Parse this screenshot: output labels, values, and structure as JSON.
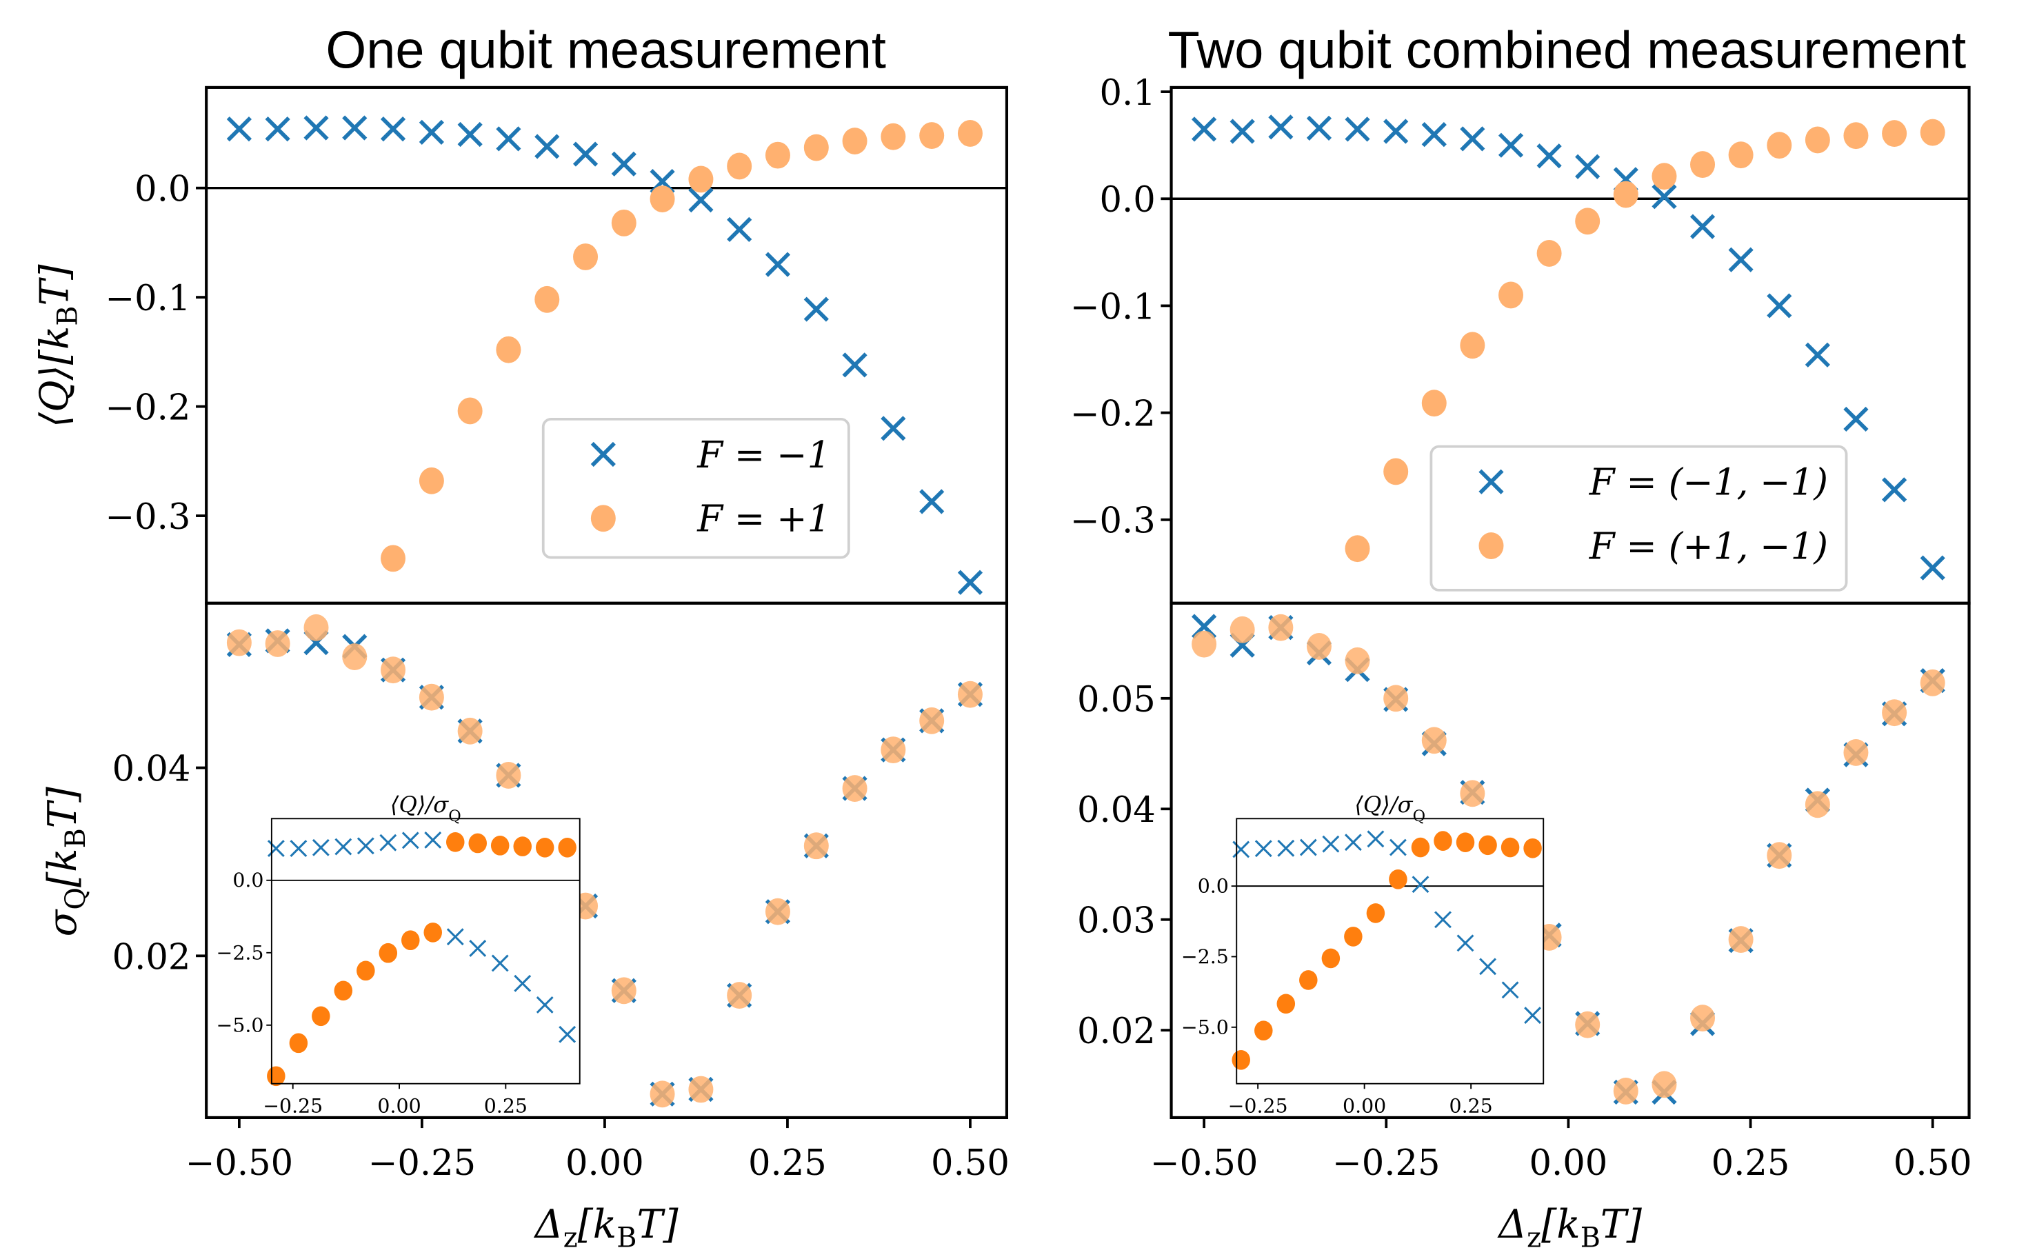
{
  "colors": {
    "blue": "#1f77b4",
    "orange_light": "#ffb170",
    "orange": "#ff7f0e",
    "legend_border": "#d0d0d0"
  },
  "chart_data": [
    {
      "type": "scatter",
      "title": "One qubit measurement",
      "x": [
        -0.5,
        -0.4474,
        -0.3947,
        -0.3421,
        -0.2895,
        -0.2368,
        -0.1842,
        -0.1316,
        -0.0789,
        -0.0263,
        0.0263,
        0.0789,
        0.1316,
        0.1842,
        0.2368,
        0.2895,
        0.3421,
        0.3947,
        0.4474,
        0.5
      ],
      "xlabel": "Δ_{z}[k_{B}T]",
      "xlim": [
        -0.545,
        0.55
      ],
      "xticks": [
        -0.5,
        -0.25,
        0,
        0.25,
        0.5
      ],
      "xticklabels": [
        "−0.50",
        "−0.25",
        "0.00",
        "0.25",
        "0.50"
      ],
      "legend": {
        "placement": "lower-right of top panel",
        "entries": [
          "F = −1",
          "F = +1"
        ]
      },
      "mean_panel": {
        "ylabel": "⟨Q⟩[k_{B}T]",
        "ylim": [
          -0.38,
          0.092
        ],
        "yticks": [
          0,
          -0.1,
          -0.2,
          -0.3
        ],
        "yticklabels": [
          "0.0",
          "−0.1",
          "−0.2",
          "−0.3"
        ],
        "hline": 0,
        "series": [
          {
            "name": "F = −1",
            "marker": "x",
            "y": [
              0.054,
              0.054,
              0.055,
              0.055,
              0.054,
              0.051,
              0.049,
              0.045,
              0.038,
              0.031,
              0.022,
              0.006,
              -0.011,
              -0.038,
              -0.07,
              -0.111,
              -0.162,
              -0.22,
              -0.287,
              -0.361
            ]
          },
          {
            "name": "F = +1",
            "marker": "o",
            "y": [
              null,
              null,
              null,
              null,
              -0.339,
              -0.268,
              -0.204,
              -0.148,
              -0.102,
              -0.063,
              -0.032,
              -0.01,
              0.008,
              0.02,
              0.03,
              0.037,
              0.043,
              0.047,
              0.048,
              0.05
            ]
          }
        ]
      },
      "std_panel": {
        "ylabel": "σ_{Q}[k_{B}T]",
        "ylim": [
          0.0028,
          0.0575
        ],
        "yticks": [
          0.02,
          0.04
        ],
        "yticklabels": [
          "0.02",
          "0.04"
        ],
        "series": [
          {
            "name": "F = −1",
            "marker": "x",
            "y": [
              0.0531,
              0.0535,
              0.0533,
              0.0529,
              0.0504,
              0.0475,
              0.0439,
              0.0392,
              null,
              0.0253,
              0.0163,
              0.0053,
              0.0058,
              0.0158,
              0.0247,
              0.0317,
              0.0378,
              0.0419,
              0.045,
              0.0478
            ]
          },
          {
            "name": "F = +1",
            "marker": "o",
            "y": [
              0.0533,
              0.0532,
              0.0549,
              0.0518,
              0.0504,
              0.0475,
              0.0439,
              0.0392,
              null,
              0.0253,
              0.0163,
              0.0053,
              0.0058,
              0.0158,
              0.0247,
              0.0317,
              0.0378,
              0.0419,
              0.045,
              0.0478
            ]
          }
        ]
      },
      "inset": {
        "title": "⟨Q⟩/σ_{Q}",
        "x": [
          -0.2895,
          -0.2368,
          -0.1842,
          -0.1316,
          -0.0789,
          -0.0263,
          0.0263,
          0.0789,
          0.1316,
          0.1842,
          0.2368,
          0.2895,
          0.3421,
          0.3947
        ],
        "xlim": [
          -0.3,
          0.424
        ],
        "ylim": [
          -7.02,
          2.13
        ],
        "xticks": [
          -0.25,
          0,
          0.25
        ],
        "xticklabels": [
          "−0.25",
          "0.00",
          "0.25"
        ],
        "yticks": [
          0,
          -2.5,
          -5
        ],
        "yticklabels": [
          "0.0",
          "−2.5",
          "−5.0"
        ],
        "hline": 0,
        "series": [
          {
            "name": "F = −1",
            "marker": "x",
            "y": [
              1.1,
              1.1,
              1.13,
              1.16,
              1.19,
              1.3,
              1.38,
              1.39,
              -1.95,
              -2.35,
              -2.86,
              -3.56,
              -4.3,
              -5.32
            ]
          },
          {
            "name": "F = +1",
            "marker": "o",
            "y": [
              -6.76,
              -5.62,
              -4.69,
              -3.81,
              -3.12,
              -2.51,
              -2.07,
              -1.8,
              1.32,
              1.28,
              1.2,
              1.17,
              1.13,
              1.13
            ]
          }
        ]
      }
    },
    {
      "type": "scatter",
      "title": "Two qubit combined measurement",
      "x": [
        -0.5,
        -0.4474,
        -0.3947,
        -0.3421,
        -0.2895,
        -0.2368,
        -0.1842,
        -0.1316,
        -0.0789,
        -0.0263,
        0.0263,
        0.0789,
        0.1316,
        0.1842,
        0.2368,
        0.2895,
        0.3421,
        0.3947,
        0.4474,
        0.5
      ],
      "xlabel": "Δ_{z}[k_{B}T]",
      "xlim": [
        -0.545,
        0.55
      ],
      "xticks": [
        -0.5,
        -0.25,
        0,
        0.25,
        0.5
      ],
      "xticklabels": [
        "−0.50",
        "−0.25",
        "0.00",
        "0.25",
        "0.50"
      ],
      "legend": {
        "placement": "lower-right of top panel",
        "entries": [
          "F = (−1, −1)",
          "F = (+1, −1)"
        ]
      },
      "mean_panel": {
        "ylabel": "",
        "ylim": [
          -0.378,
          0.104
        ],
        "yticks": [
          0.1,
          0,
          -0.1,
          -0.2,
          -0.3
        ],
        "yticklabels": [
          "0.1",
          "0.0",
          "−0.1",
          "−0.2",
          "−0.3"
        ],
        "hline": 0,
        "series": [
          {
            "name": "F = (−1, −1)",
            "marker": "x",
            "y": [
              0.065,
              0.063,
              0.067,
              0.066,
              0.065,
              0.063,
              0.06,
              0.056,
              0.05,
              0.04,
              0.03,
              0.018,
              0.002,
              -0.026,
              -0.057,
              -0.1,
              -0.146,
              -0.206,
              -0.272,
              -0.345
            ]
          },
          {
            "name": "F = (+1, −1)",
            "marker": "o",
            "y": [
              null,
              null,
              null,
              null,
              -0.327,
              -0.255,
              -0.191,
              -0.137,
              -0.09,
              -0.051,
              -0.021,
              0.004,
              0.021,
              0.032,
              0.041,
              0.05,
              0.055,
              0.059,
              0.061,
              0.062
            ]
          }
        ]
      },
      "std_panel": {
        "ylabel": "",
        "ylim": [
          0.0121,
          0.0586
        ],
        "yticks": [
          0.02,
          0.03,
          0.04,
          0.05
        ],
        "yticklabels": [
          "0.02",
          "0.03",
          "0.04",
          "0.05"
        ],
        "series": [
          {
            "name": "F = (−1, −1)",
            "marker": "x",
            "y": [
              0.0565,
              0.0548,
              0.0564,
              0.0541,
              0.0526,
              0.0499,
              0.0459,
              0.0415,
              null,
              0.0286,
              0.0206,
              0.0144,
              0.0144,
              0.0206,
              0.0281,
              0.0358,
              0.0408,
              0.0449,
              0.0486,
              0.0516
            ]
          },
          {
            "name": "F = (+1, −1)",
            "marker": "o",
            "y": [
              0.0549,
              0.0562,
              0.0564,
              0.0547,
              0.0534,
              0.05,
              0.0462,
              0.0414,
              null,
              0.0284,
              0.0205,
              0.0145,
              0.0151,
              0.0211,
              0.0282,
              0.0358,
              0.0404,
              0.0451,
              0.0487,
              0.0514
            ]
          }
        ]
      },
      "inset": {
        "title": "⟨Q⟩/σ_{Q}",
        "x": [
          -0.2895,
          -0.2368,
          -0.1842,
          -0.1316,
          -0.0789,
          -0.0263,
          0.0263,
          0.0789,
          0.1316,
          0.1842,
          0.2368,
          0.2895,
          0.3421,
          0.3947
        ],
        "xlim": [
          -0.3,
          0.42
        ],
        "ylim": [
          -7.0,
          2.39
        ],
        "xticks": [
          -0.25,
          0,
          0.25
        ],
        "xticklabels": [
          "−0.25",
          "0.00",
          "0.25"
        ],
        "yticks": [
          0,
          -2.5,
          -5
        ],
        "yticklabels": [
          "0.0",
          "−2.5",
          "−5.0"
        ],
        "hline": 0,
        "series": [
          {
            "name": "F = (−1, −1)",
            "marker": "x",
            "y": [
              1.3,
              1.33,
              1.34,
              1.37,
              1.49,
              1.55,
              1.67,
              1.37,
              0.06,
              -1.19,
              -2.02,
              -2.85,
              -3.68,
              -4.58
            ]
          },
          {
            "name": "F = (+1, −1)",
            "marker": "o",
            "y": [
              -6.16,
              -5.12,
              -4.17,
              -3.33,
              -2.56,
              -1.79,
              -0.96,
              0.24,
              1.37,
              1.6,
              1.55,
              1.45,
              1.37,
              1.34
            ]
          }
        ]
      }
    }
  ]
}
